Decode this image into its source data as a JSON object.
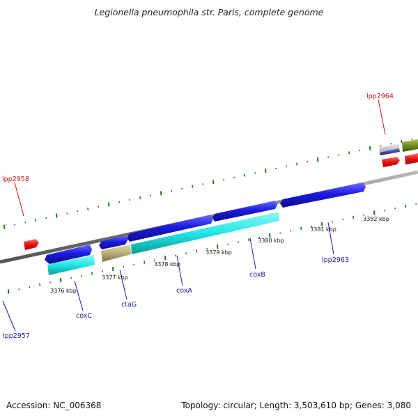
{
  "title": "Legionella pneumophila str. Paris, complete genome",
  "footer": {
    "accession": "Accession: NC_006368",
    "topology": "Topology: circular; Length: 3,503,610 bp; Genes: 3,080"
  },
  "colors": {
    "background": "#ffffff",
    "backbone": "#808080",
    "tick_marks": "#1a7a1a",
    "label_blue": "#1a1aa6",
    "label_red": "#d01010",
    "gene_blue": "#1c1ce0",
    "gene_cyan": "#22e6e6",
    "gene_tan": "#b8ae76",
    "gene_red": "#ee1010",
    "gene_olive": "#6f8f23",
    "gene_grey": "#c4c4cc",
    "gene_navy": "#3a3a9a"
  },
  "scale_labels": [
    "3376 kbp",
    "3377 kbp",
    "3378 kbp",
    "3379 kbp",
    "3380 kbp",
    "3381 kbp",
    "3382 kbp"
  ],
  "gene_labels": [
    {
      "name": "lpp2958",
      "color": "red"
    },
    {
      "name": "lpp2964",
      "color": "red"
    },
    {
      "name": "lpp2957",
      "color": "blue"
    },
    {
      "name": "coxC",
      "color": "blue"
    },
    {
      "name": "ctaG",
      "color": "blue"
    },
    {
      "name": "coxA",
      "color": "blue"
    },
    {
      "name": "coxB",
      "color": "blue"
    },
    {
      "name": "lpp2963",
      "color": "blue"
    }
  ]
}
